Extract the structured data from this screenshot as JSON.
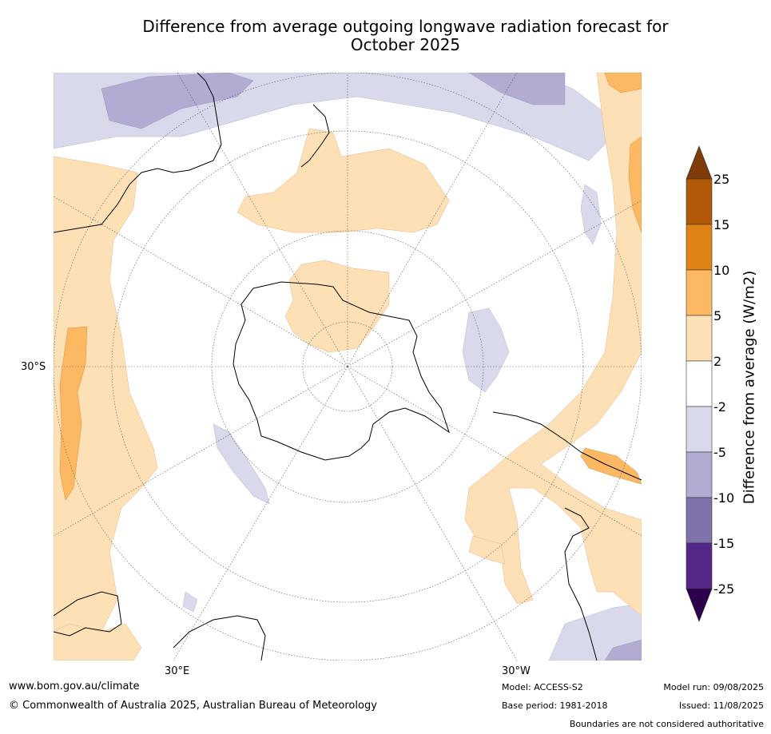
{
  "title_line1": "Difference from average outgoing longwave radiation forecast for",
  "title_line2": "October 2025",
  "map": {
    "lat_labels": [
      "30°S"
    ],
    "lon_labels": [
      "30°E",
      "30°W"
    ]
  },
  "colorbar": {
    "title": "Difference from average (W/m2)",
    "ticks": [
      "25",
      "15",
      "10",
      "5",
      "2",
      "-2",
      "-5",
      "-10",
      "-15",
      "-25"
    ],
    "colors": {
      "above_25": "#7f3b08",
      "15_25": "#b35806",
      "10_15": "#e08214",
      "5_10": "#fdb863",
      "2_5": "#fee0b6",
      "neutral": "#ffffff",
      "m5_m2": "#d8daeb",
      "m10_m5": "#b2abd2",
      "m15_m10": "#8073ac",
      "m25_m15": "#542788",
      "below_m25": "#2d004b"
    }
  },
  "footer": {
    "website": "www.bom.gov.au/climate",
    "copyright": "© Commonwealth of Australia 2025, Australian Bureau of Meteorology",
    "model": "Model: ACCESS-S2",
    "base_period": "Base period: 1981-2018",
    "model_run": "Model run: 09/08/2025",
    "issued": "Issued: 11/08/2025",
    "disclaimer": "Boundaries are not considered authoritative"
  }
}
